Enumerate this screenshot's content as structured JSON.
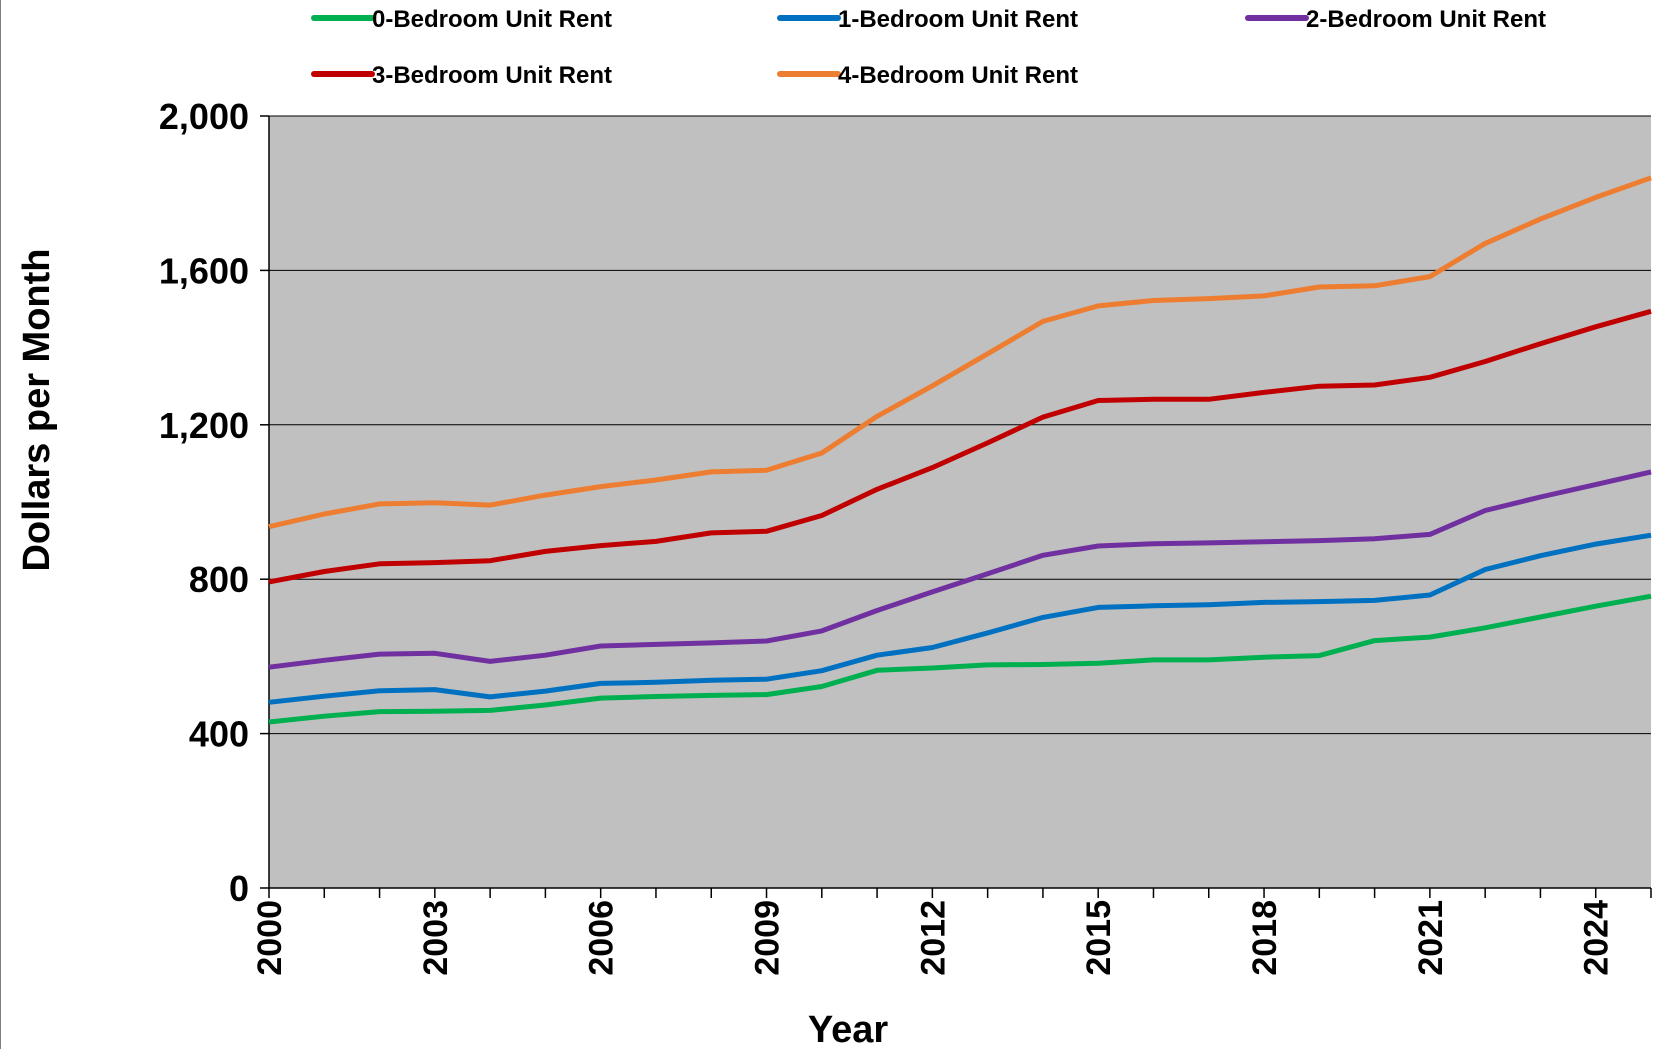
{
  "chart_data": {
    "type": "line",
    "title": "",
    "xlabel": "Year",
    "ylabel": "Dollars per Month",
    "xlim": [
      2000,
      2025
    ],
    "ylim": [
      0,
      2000
    ],
    "yticks": [
      0,
      400,
      800,
      1200,
      1600,
      2000
    ],
    "ytick_labels": [
      "0",
      "400",
      "800",
      "1,200",
      "1,600",
      "2,000"
    ],
    "xticks": [
      2000,
      2003,
      2006,
      2009,
      2012,
      2015,
      2018,
      2021,
      2024
    ],
    "xtick_labels": [
      "2000",
      "2003",
      "2006",
      "2009",
      "2012",
      "2015",
      "2018",
      "2021",
      "2024"
    ],
    "grid": true,
    "legend_position": "top",
    "plot_background": "#c0c0c0",
    "x": [
      2000,
      2001,
      2002,
      2003,
      2004,
      2005,
      2006,
      2007,
      2008,
      2009,
      2010,
      2011,
      2012,
      2013,
      2014,
      2015,
      2016,
      2017,
      2018,
      2019,
      2020,
      2021,
      2022,
      2023,
      2024,
      2025
    ],
    "series": [
      {
        "name": "0-Bedroom Unit Rent",
        "color": "#00b050",
        "values": [
          430,
          445,
          457,
          458,
          460,
          474,
          492,
          496,
          499,
          501,
          522,
          564,
          570,
          578,
          579,
          582,
          591,
          591,
          598,
          602,
          641,
          650,
          674,
          702,
          730,
          756
        ]
      },
      {
        "name": "1-Bedroom Unit Rent",
        "color": "#0070c0",
        "values": [
          481,
          497,
          511,
          514,
          495,
          510,
          530,
          533,
          538,
          541,
          563,
          603,
          623,
          661,
          701,
          727,
          731,
          734,
          740,
          742,
          745,
          759,
          825,
          861,
          891,
          914
        ]
      },
      {
        "name": "2-Bedroom Unit Rent",
        "color": "#7030a0",
        "values": [
          572,
          590,
          606,
          608,
          587,
          603,
          627,
          631,
          635,
          640,
          666,
          719,
          767,
          814,
          862,
          886,
          892,
          894,
          897,
          900,
          905,
          916,
          978,
          1013,
          1045,
          1078
        ]
      },
      {
        "name": "3-Bedroom Unit Rent",
        "color": "#c00000",
        "values": [
          793,
          820,
          840,
          843,
          848,
          872,
          887,
          898,
          920,
          924,
          965,
          1033,
          1089,
          1153,
          1220,
          1263,
          1266,
          1266,
          1284,
          1300,
          1303,
          1323,
          1364,
          1410,
          1454,
          1494
        ]
      },
      {
        "name": "4-Bedroom Unit Rent",
        "color": "#ed7d31",
        "values": [
          936,
          969,
          995,
          998,
          992,
          1018,
          1040,
          1057,
          1078,
          1082,
          1127,
          1222,
          1301,
          1384,
          1468,
          1508,
          1522,
          1527,
          1534,
          1557,
          1560,
          1584,
          1670,
          1733,
          1789,
          1840
        ]
      }
    ]
  }
}
